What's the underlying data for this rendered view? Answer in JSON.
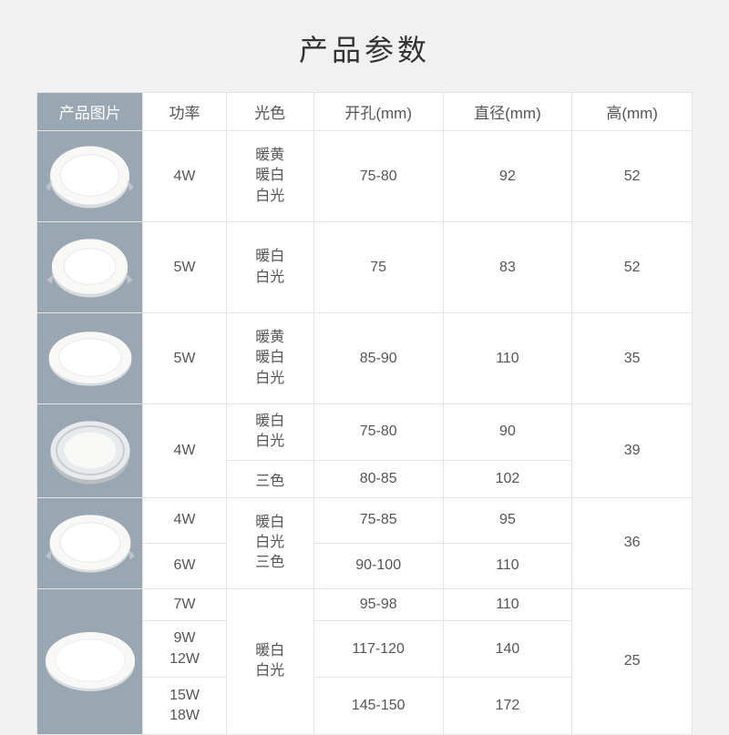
{
  "title": "产品参数",
  "columns": {
    "image": "产品图片",
    "power": "功率",
    "color": "光色",
    "hole": "开孔(mm)",
    "diameter": "直径(mm)",
    "height": "高(mm)"
  },
  "rows": {
    "r1": {
      "power": "4W",
      "color": "暖黄\n暖白\n白光",
      "hole": "75-80",
      "diameter": "92",
      "height": "52"
    },
    "r2": {
      "power": "5W",
      "color": "暖白\n白光",
      "hole": "75",
      "diameter": "83",
      "height": "52"
    },
    "r3": {
      "power": "5W",
      "color": "暖黄\n暖白\n白光",
      "hole": "85-90",
      "diameter": "110",
      "height": "35"
    },
    "r4a": {
      "power": "4W",
      "color": "暖白\n白光",
      "hole": "75-80",
      "diameter": "90"
    },
    "r4b": {
      "color": "三色",
      "hole": "80-85",
      "diameter": "102"
    },
    "r4height": "39",
    "r5a": {
      "power": "4W",
      "hole": "75-85",
      "diameter": "95"
    },
    "r5b": {
      "power": "6W",
      "hole": "90-100",
      "diameter": "110"
    },
    "r5color": "暖白\n白光\n三色",
    "r5height": "36",
    "r6a": {
      "power": "7W",
      "hole": "95-98",
      "diameter": "110"
    },
    "r6b": {
      "power": "9W\n12W",
      "hole": "117-120",
      "diameter": "140"
    },
    "r6c": {
      "power": "15W\n18W",
      "hole": "145-150",
      "diameter": "172"
    },
    "r6color": "暖白\n白光",
    "r6height": "25"
  },
  "style": {
    "page_bg": "#f0f1f0",
    "table_bg": "#ffffff",
    "border_color": "#e5e5e5",
    "header_img_bg": "#99a7b3",
    "header_img_text": "#ffffff",
    "text_color": "#555555",
    "title_color": "#333333",
    "light_face": "#f8f8f6",
    "light_rim": "#d8dcde",
    "light_rim_dark": "#b8bec2"
  }
}
